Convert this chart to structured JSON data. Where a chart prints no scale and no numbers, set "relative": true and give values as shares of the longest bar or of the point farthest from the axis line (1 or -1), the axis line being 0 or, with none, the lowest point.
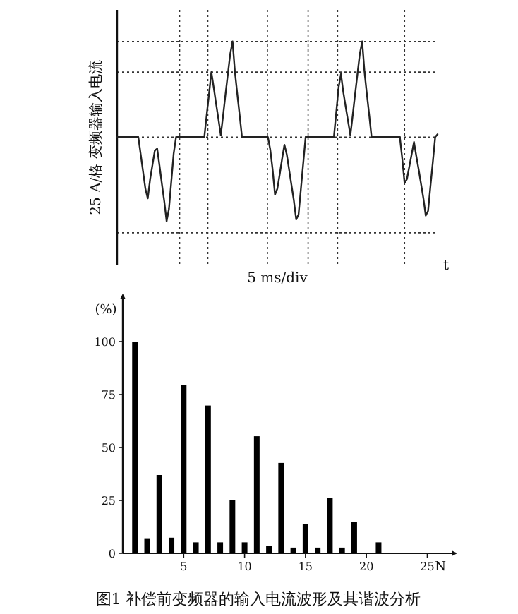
{
  "chart_data": [
    {
      "type": "line",
      "relative": true,
      "xlabel": "5 ms/div",
      "ylabel": "25 A/格  变频器输入电流",
      "annotations": [
        "t"
      ],
      "categories": [
        null,
        null,
        null,
        null,
        null,
        null,
        null,
        null,
        null,
        null,
        null,
        null,
        null,
        null,
        null,
        null,
        null,
        null,
        null,
        null,
        null,
        null,
        null,
        null,
        null,
        null,
        null,
        null,
        null,
        null,
        null,
        null,
        null,
        null,
        null,
        null,
        null,
        null,
        null,
        null,
        null,
        null,
        null,
        null,
        null,
        null,
        null,
        null,
        null,
        null,
        null,
        null,
        null,
        null,
        null,
        null,
        null,
        null,
        null,
        null,
        null,
        null,
        null,
        null,
        null,
        null,
        null,
        null,
        null,
        null,
        null,
        null,
        null,
        null,
        null,
        null,
        null,
        null,
        null,
        null,
        null,
        null,
        null,
        null,
        null,
        null,
        null,
        null,
        null,
        null,
        null,
        null,
        null,
        null,
        null,
        null,
        null,
        null,
        null,
        null,
        null,
        null,
        null,
        null,
        null,
        null,
        null,
        null,
        null,
        null,
        null,
        null,
        null,
        null,
        null,
        null,
        null,
        null,
        null,
        null,
        null,
        null,
        null,
        null,
        null,
        null,
        null,
        null,
        null,
        null,
        null,
        null,
        null,
        null,
        null,
        null,
        null
      ],
      "series": [
        {
          "color": "#222222",
          "values": [
            0,
            0,
            0,
            0,
            0,
            0,
            0,
            0,
            0,
            0,
            -0.18,
            -0.36,
            -0.54,
            -0.64,
            -0.44,
            -0.29,
            -0.14,
            -0.12,
            -0.3,
            -0.49,
            -0.67,
            -0.88,
            -0.75,
            -0.46,
            -0.17,
            0,
            0,
            0,
            0,
            0,
            0,
            0,
            0,
            0,
            0,
            0,
            0,
            0,
            0.23,
            0.45,
            0.68,
            0.52,
            0.35,
            0.19,
            0.02,
            0.23,
            0.45,
            0.66,
            0.87,
            1,
            0.68,
            0.45,
            0.23,
            0,
            0,
            0,
            0,
            0,
            0,
            0,
            0,
            0,
            0,
            0,
            0,
            -0.13,
            -0.34,
            -0.6,
            -0.54,
            -0.39,
            -0.23,
            -0.08,
            -0.18,
            -0.34,
            -0.5,
            -0.66,
            -0.86,
            -0.81,
            -0.54,
            -0.27,
            0,
            0,
            0,
            0,
            0,
            0,
            0,
            0,
            0,
            0,
            0,
            0,
            0,
            0.26,
            0.52,
            0.66,
            0.47,
            0.32,
            0.17,
            0.02,
            0.23,
            0.45,
            0.66,
            0.87,
            1,
            0.68,
            0.45,
            0.23,
            0,
            0,
            0,
            0,
            0,
            0,
            0,
            0,
            0,
            0,
            0,
            0,
            0,
            -0.22,
            -0.48,
            -0.44,
            -0.31,
            -0.18,
            -0.05,
            -0.2,
            -0.34,
            -0.49,
            -0.64,
            -0.82,
            -0.77,
            -0.51,
            -0.26,
            0,
            0.03
          ]
        }
      ],
      "line_style": "solid"
    },
    {
      "type": "bar",
      "xlabel": "N",
      "ylabel": "(%)",
      "annotations": [
        "图1  补偿前变频器的输入电流波形及其谐波分析"
      ],
      "x": [
        1,
        2,
        3,
        4,
        5,
        6,
        7,
        8,
        9,
        10,
        11,
        12,
        13,
        14,
        15,
        16,
        17,
        18,
        19,
        21
      ],
      "values": [
        100,
        6.8,
        37,
        7.4,
        79.5,
        5.2,
        69.8,
        5.2,
        25,
        5.2,
        55.3,
        3.6,
        42.7,
        2.7,
        14,
        2.7,
        26,
        2.7,
        14.7,
        5.2
      ],
      "color": "#000000",
      "xlim": [
        0,
        27
      ],
      "ylim": [
        0,
        120
      ],
      "xticks": [
        5,
        10,
        15,
        20,
        25
      ],
      "yticks": [
        0,
        25,
        50,
        75,
        100
      ]
    }
  ]
}
